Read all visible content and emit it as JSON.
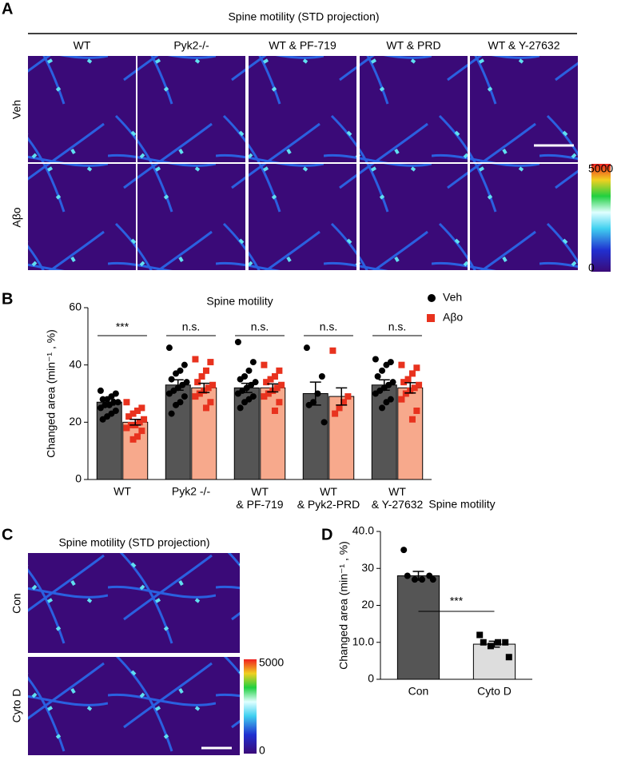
{
  "panel_a": {
    "label": "A",
    "title": "Spine motility (STD projection)",
    "columns": [
      "WT",
      "Pyk2-/-",
      "WT & PF-719",
      "WT & PRD",
      "WT & Y-27632"
    ],
    "rows": [
      "Veh",
      "Aβo"
    ],
    "colorbar_ticks": [
      0,
      5000
    ]
  },
  "panel_b_label": "B",
  "panel_c": {
    "label": "C",
    "title": "Spine motility (STD projection)",
    "rows": [
      "Con",
      "Cyto D"
    ],
    "colorbar_ticks": [
      0,
      5000
    ]
  },
  "panel_d_label": "D",
  "chart_data": [
    {
      "type": "bar",
      "title": "Spine motility",
      "y_label": "Changed area (min⁻¹ , %)",
      "categories": [
        "WT",
        "Pyk2 -/-",
        "WT\n& PF-719",
        "WT\n& Pyk2-PRD",
        "WT\n& Y-27632"
      ],
      "ylim": [
        0,
        60
      ],
      "yticks": [
        0,
        20,
        40,
        60
      ],
      "annotations": [
        "***",
        "n.s.",
        "n.s.",
        "n.s.",
        "n.s."
      ],
      "series": [
        {
          "name": "Veh",
          "color": "#555555",
          "marker_color": "#000000",
          "marker": "circle",
          "values": [
            27,
            33,
            32,
            30,
            33
          ],
          "errors": [
            1,
            1.8,
            1.6,
            4,
            1.8
          ],
          "points": [
            [
              31,
              30,
              29,
              28,
              28,
              27,
              27,
              26,
              26,
              25,
              24,
              23,
              22,
              21
            ],
            [
              46,
              40,
              38,
              37,
              35,
              34,
              33,
              32,
              31,
              30,
              29,
              27,
              26,
              23
            ],
            [
              48,
              41,
              38,
              36,
              35,
              34,
              33,
              32,
              31,
              30,
              29,
              28,
              27,
              25
            ],
            [
              46,
              36,
              30,
              27,
              26,
              20
            ],
            [
              42,
              41,
              40,
              38,
              36,
              34,
              33,
              32,
              31,
              30,
              28,
              27,
              25
            ]
          ]
        },
        {
          "name": "Aβo",
          "color": "#f7a98c",
          "marker_color": "#e8321e",
          "marker": "square",
          "values": [
            20,
            32,
            32,
            29,
            32
          ],
          "errors": [
            1,
            1.6,
            1.4,
            3,
            1.8
          ],
          "points": [
            [
              27,
              25,
              24,
              23,
              22,
              21,
              20,
              19,
              19,
              18,
              17,
              15,
              14
            ],
            [
              42,
              41,
              38,
              36,
              34,
              33,
              32,
              31,
              30,
              29,
              27,
              25
            ],
            [
              40,
              38,
              36,
              35,
              34,
              33,
              32,
              31,
              30,
              29,
              27,
              24
            ],
            [
              45,
              29,
              27,
              25,
              23
            ],
            [
              40,
              39,
              37,
              35,
              34,
              33,
              32,
              31,
              30,
              28,
              24,
              21
            ]
          ]
        }
      ]
    },
    {
      "type": "bar",
      "title": "Spine motility",
      "y_label": "Changed area (min⁻¹ , %)",
      "categories": [
        "Con",
        "Cyto D"
      ],
      "ylim": [
        0,
        40
      ],
      "yticks": [
        0,
        {
          "value": 10,
          "label": "10.0"
        },
        20,
        30,
        {
          "value": 40,
          "label": "40.0"
        }
      ],
      "bracket_annotation": "***",
      "series": [
        {
          "colors": [
            "#555555",
            "#dddddd"
          ],
          "marker_color": "#000000",
          "markers": [
            "circle",
            "square"
          ],
          "values": [
            28,
            9.5
          ],
          "errors": [
            1.2,
            0.8
          ],
          "points": [
            [
              35,
              28,
              27,
              27,
              28,
              27
            ],
            [
              12,
              10,
              10,
              9,
              10,
              6
            ]
          ]
        }
      ]
    }
  ]
}
